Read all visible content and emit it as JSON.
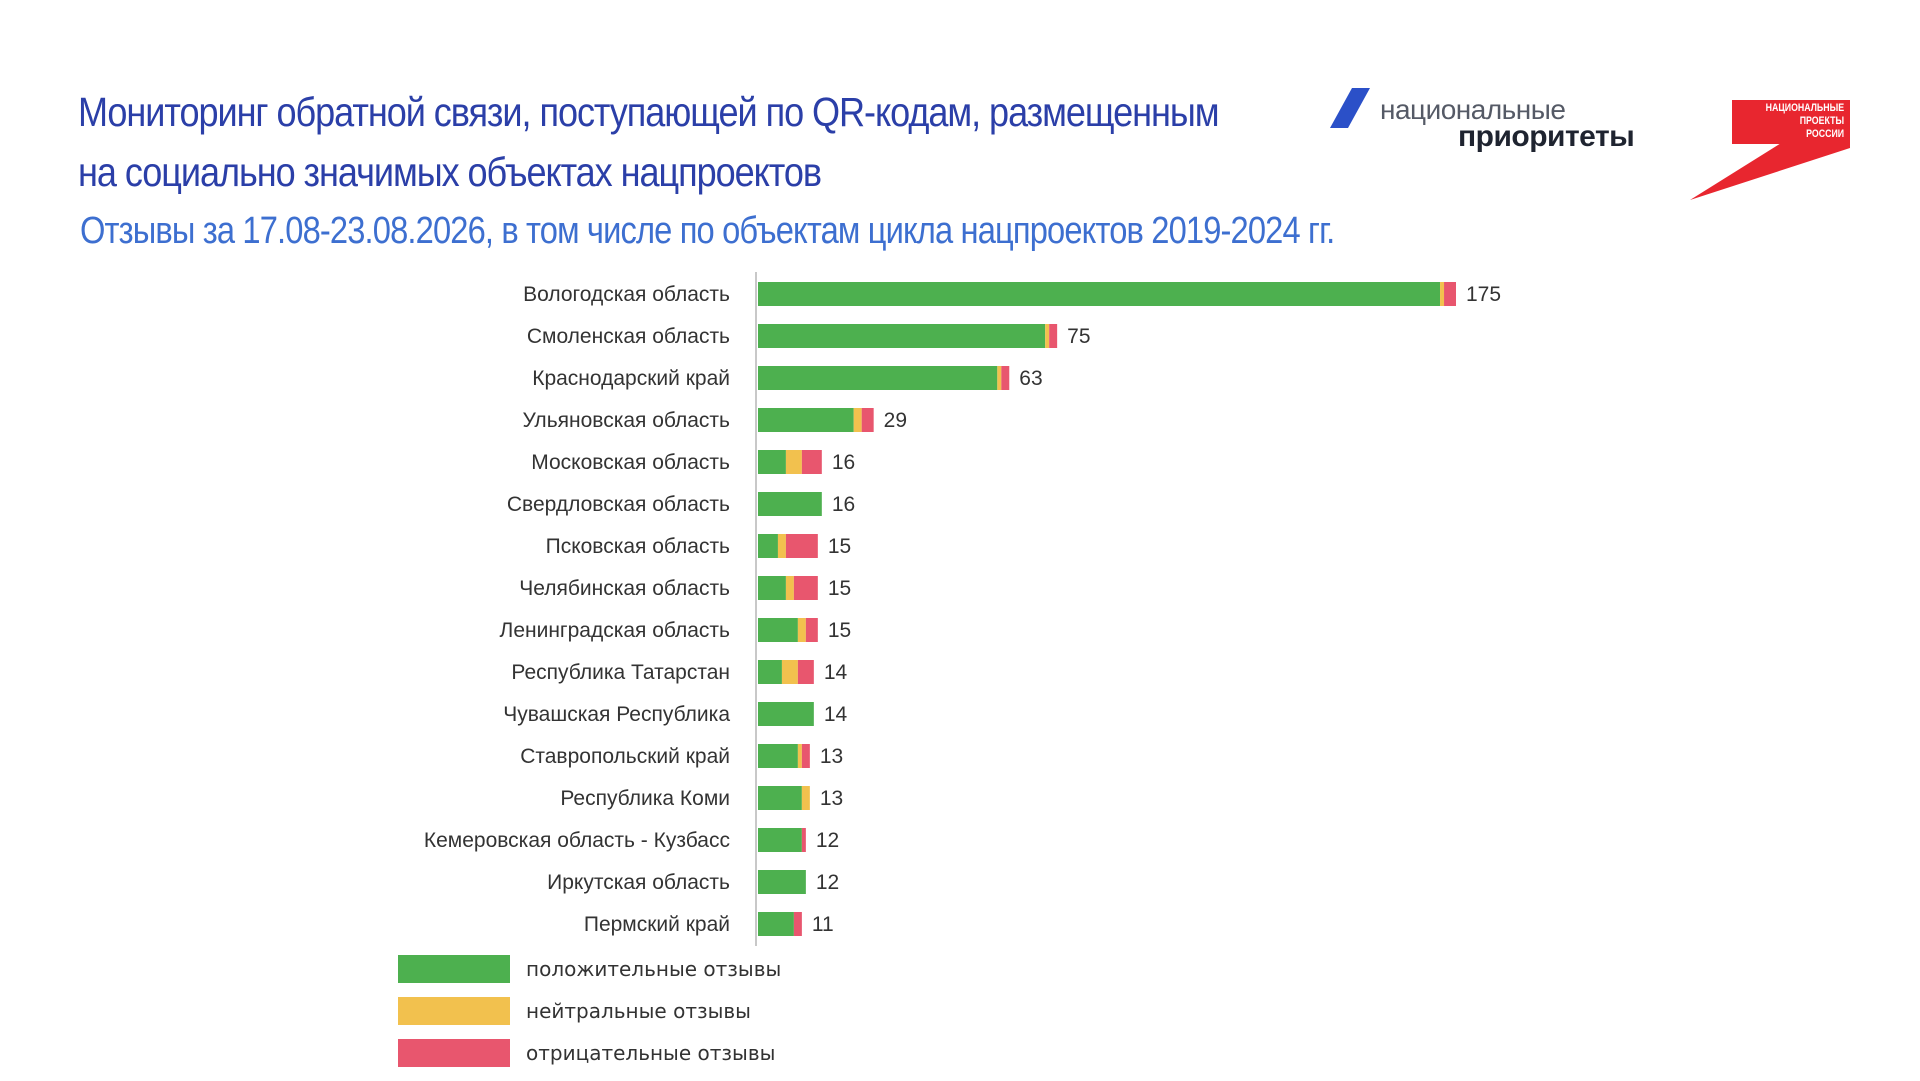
{
  "title": {
    "line1": "Мониторинг обратной связи, поступающей по QR-кодам, размещенным",
    "line2": "на социально значимых объектах нацпроектов"
  },
  "subtitle": "Отзывы за 17.08-23.08.2026, в  том числе по объектам цикла нацпроектов 2019-2024 гг.",
  "logo_national_priorities": {
    "line1": "национальные",
    "line2": "приоритеты"
  },
  "logo_national_projects": {
    "line1": "НАЦИОНАЛЬНЫЕ",
    "line2": "ПРОЕКТЫ",
    "line3": "РОССИИ"
  },
  "colors": {
    "positive": "#4db04f",
    "neutral": "#f2c14e",
    "negative": "#e8566e",
    "title": "#2b3fa8",
    "subtitle": "#3d6fd0",
    "logo_red": "#e8262f",
    "logo_blue": "#2b50c8"
  },
  "chart_data": {
    "type": "bar",
    "orientation": "horizontal",
    "stacked": true,
    "categories": [
      "Вологодская область",
      "Смоленская область",
      "Краснодарский край",
      "Ульяновская область",
      "Московская область",
      "Свердловская область",
      "Псковская область",
      "Челябинская область",
      "Ленинградская область",
      "Республика Татарстан",
      "Чувашская Республика",
      "Ставропольский край",
      "Республика Коми",
      "Кемеровская область - Кузбасс",
      "Иркутская область",
      "Пермский край"
    ],
    "series": [
      {
        "name": "положительные отзывы",
        "color": "#4db04f",
        "values": [
          171,
          72,
          60,
          24,
          7,
          16,
          5,
          7,
          10,
          6,
          14,
          10,
          11,
          11,
          12,
          9
        ]
      },
      {
        "name": "нейтральные отзывы",
        "color": "#f2c14e",
        "values": [
          1,
          1,
          1,
          2,
          4,
          0,
          2,
          2,
          2,
          4,
          0,
          1,
          2,
          0,
          0,
          0
        ]
      },
      {
        "name": "отрицательные отзывы",
        "color": "#e8566e",
        "values": [
          3,
          2,
          2,
          3,
          5,
          0,
          8,
          6,
          3,
          4,
          0,
          2,
          0,
          1,
          0,
          2
        ]
      }
    ],
    "totals": [
      175,
      75,
      63,
      29,
      16,
      16,
      15,
      15,
      15,
      14,
      14,
      13,
      13,
      12,
      12,
      11
    ],
    "xlim": [
      0,
      175
    ],
    "grid": false,
    "legend": "bottom-left"
  }
}
